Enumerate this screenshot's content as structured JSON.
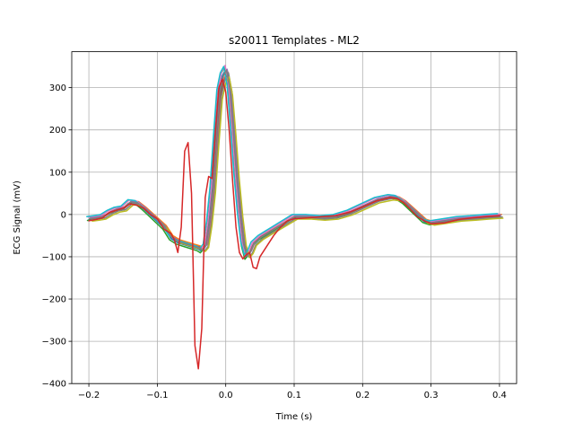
{
  "chart_data": {
    "type": "line",
    "title": "s20011 Templates - ML2",
    "xlabel": "Time (s)",
    "ylabel": "ECG Signal (mV)",
    "xlim": [
      -0.225,
      0.425
    ],
    "ylim": [
      -400,
      385
    ],
    "xticks": [
      -0.2,
      -0.1,
      0.0,
      0.1,
      0.2,
      0.3,
      0.4
    ],
    "xtick_labels": [
      "−0.2",
      "−0.1",
      "0.0",
      "0.1",
      "0.2",
      "0.3",
      "0.4"
    ],
    "yticks": [
      -400,
      -300,
      -200,
      -100,
      0,
      100,
      200,
      300
    ],
    "ytick_labels": [
      "−400",
      "−300",
      "−200",
      "−100",
      "0",
      "100",
      "200",
      "300"
    ],
    "grid": true,
    "legend": "none",
    "colors": [
      "#1f77b4",
      "#ff7f0e",
      "#2ca02c",
      "#9467bd",
      "#8c564b",
      "#e377c2",
      "#7f7f7f",
      "#bcbd22",
      "#17becf",
      "#d62728"
    ],
    "base_template": {
      "x": [
        -0.2,
        -0.19,
        -0.18,
        -0.17,
        -0.16,
        -0.15,
        -0.14,
        -0.13,
        -0.12,
        -0.11,
        -0.1,
        -0.09,
        -0.08,
        -0.07,
        -0.06,
        -0.05,
        -0.04,
        -0.035,
        -0.03,
        -0.025,
        -0.02,
        -0.015,
        -0.01,
        -0.005,
        0.0,
        0.005,
        0.01,
        0.015,
        0.02,
        0.025,
        0.03,
        0.035,
        0.04,
        0.05,
        0.06,
        0.07,
        0.08,
        0.09,
        0.1,
        0.12,
        0.14,
        0.16,
        0.18,
        0.2,
        0.22,
        0.24,
        0.25,
        0.26,
        0.27,
        0.28,
        0.29,
        0.3,
        0.32,
        0.34,
        0.36,
        0.38,
        0.4
      ],
      "y": [
        -10,
        -8,
        -5,
        5,
        12,
        15,
        30,
        28,
        15,
        0,
        -15,
        -30,
        -55,
        -65,
        -70,
        -75,
        -80,
        -85,
        -75,
        -20,
        60,
        180,
        290,
        330,
        345,
        300,
        200,
        90,
        0,
        -70,
        -100,
        -90,
        -70,
        -55,
        -45,
        -35,
        -25,
        -15,
        -5,
        -5,
        -8,
        -5,
        5,
        20,
        35,
        42,
        40,
        30,
        15,
        0,
        -15,
        -20,
        -15,
        -10,
        -8,
        -5,
        -3
      ]
    },
    "series": [
      {
        "color": "#1f77b4",
        "x_shift": 0.0,
        "y_scale": 1.0,
        "y_offset": -2
      },
      {
        "color": "#ff7f0e",
        "x_shift": 0.003,
        "y_scale": 0.97,
        "y_offset": 3
      },
      {
        "color": "#2ca02c",
        "x_shift": -0.002,
        "y_scale": 1.02,
        "y_offset": -4
      },
      {
        "color": "#9467bd",
        "x_shift": 0.002,
        "y_scale": 0.99,
        "y_offset": 2
      },
      {
        "color": "#8c564b",
        "x_shift": 0.001,
        "y_scale": 0.95,
        "y_offset": -1
      },
      {
        "color": "#e377c2",
        "x_shift": -0.001,
        "y_scale": 1.01,
        "y_offset": 4
      },
      {
        "color": "#7f7f7f",
        "x_shift": 0.004,
        "y_scale": 0.98,
        "y_offset": -3
      },
      {
        "color": "#bcbd22",
        "x_shift": 0.005,
        "y_scale": 0.96,
        "y_offset": -6
      },
      {
        "color": "#17becf",
        "x_shift": -0.003,
        "y_scale": 1.0,
        "y_offset": 5
      },
      {
        "color": "#7f7f7f",
        "x_shift": 0.001,
        "y_scale": 0.99,
        "y_offset": 0
      }
    ],
    "outlier_series": {
      "color": "#d62728",
      "x": [
        -0.2,
        -0.19,
        -0.18,
        -0.17,
        -0.16,
        -0.15,
        -0.14,
        -0.13,
        -0.12,
        -0.11,
        -0.1,
        -0.09,
        -0.085,
        -0.08,
        -0.075,
        -0.07,
        -0.065,
        -0.06,
        -0.055,
        -0.05,
        -0.045,
        -0.04,
        -0.035,
        -0.03,
        -0.025,
        -0.02,
        -0.015,
        -0.01,
        -0.005,
        0.0,
        0.005,
        0.01,
        0.015,
        0.02,
        0.025,
        0.03,
        0.035,
        0.04,
        0.045,
        0.05,
        0.06,
        0.07,
        0.08,
        0.09,
        0.1,
        0.12,
        0.14,
        0.16,
        0.18,
        0.2,
        0.22,
        0.24,
        0.25,
        0.26,
        0.27,
        0.28,
        0.29,
        0.3,
        0.32,
        0.34,
        0.36,
        0.38,
        0.4
      ],
      "y": [
        -15,
        -12,
        -8,
        5,
        10,
        15,
        25,
        22,
        15,
        0,
        -10,
        -35,
        -40,
        -45,
        -60,
        -90,
        -30,
        150,
        170,
        50,
        -310,
        -365,
        -270,
        40,
        90,
        85,
        200,
        300,
        320,
        290,
        200,
        80,
        -30,
        -90,
        -105,
        -95,
        -90,
        -125,
        -128,
        -100,
        -75,
        -50,
        -30,
        -15,
        -10,
        -8,
        -5,
        -3,
        5,
        18,
        32,
        40,
        38,
        28,
        12,
        -5,
        -15,
        -22,
        -20,
        -12,
        -8,
        -5,
        -3
      ]
    }
  }
}
